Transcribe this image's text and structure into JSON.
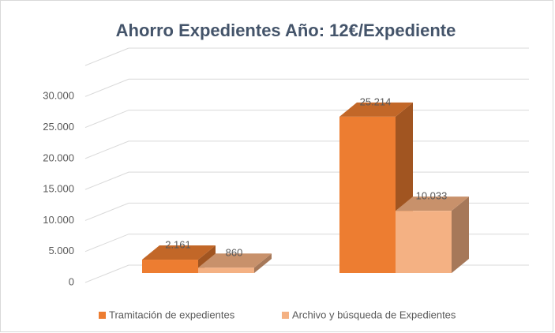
{
  "chart_data": {
    "type": "bar3d",
    "title": "Ahorro Expedientes Año: 12€/Expediente",
    "categories": [
      null,
      null
    ],
    "series": [
      {
        "name": "Tramitación de expedientes",
        "color": "#ed7d31",
        "values": [
          2161,
          25214
        ],
        "value_labels": [
          "2.161",
          "25.214"
        ]
      },
      {
        "name": "Archivo y búsqueda de Expedientes",
        "color": "#f4b183",
        "values": [
          860,
          10033
        ],
        "value_labels": [
          "860",
          "10.033"
        ]
      }
    ],
    "ylim": [
      0,
      35000
    ],
    "yticks": [
      0,
      {
        "value": 5000,
        "label": "5.000"
      },
      {
        "value": 10000,
        "label": "10.000"
      },
      {
        "value": 15000,
        "label": "15.000"
      },
      {
        "value": 20000,
        "label": "20.000"
      },
      {
        "value": 25000,
        "label": "25.000"
      },
      {
        "value": 30000,
        "label": "30.000"
      }
    ],
    "grid": true,
    "legend": "bottom"
  }
}
